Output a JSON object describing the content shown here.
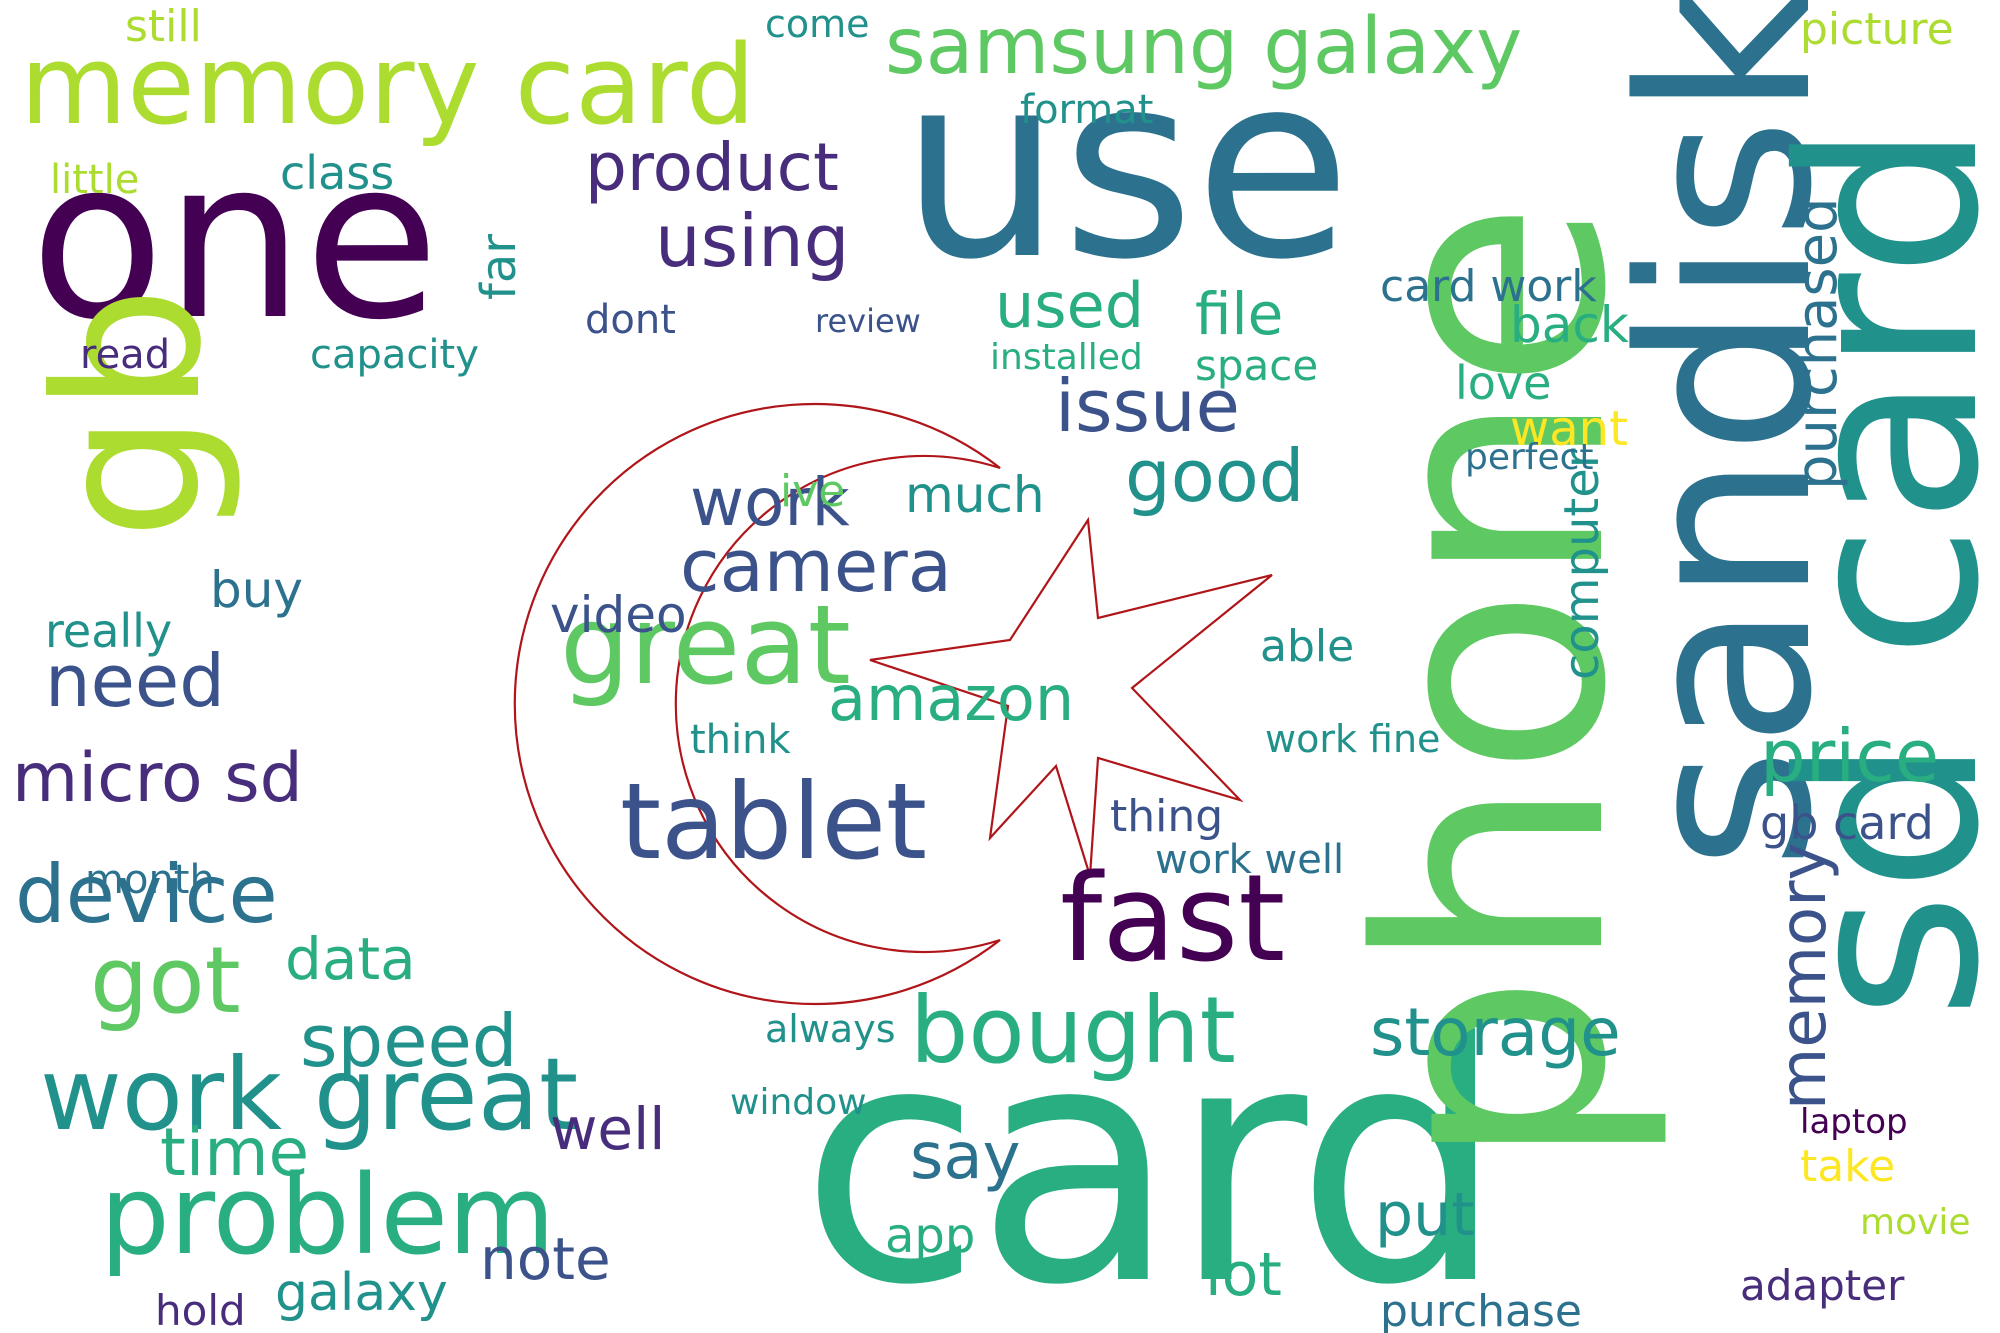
{
  "palette": [
    "#440154",
    "#472d7b",
    "#3b528b",
    "#2c728e",
    "#21918c",
    "#28ae80",
    "#5ec962",
    "#addc30",
    "#fde725"
  ],
  "emblem": {
    "stroke": "#b0151a",
    "description_hidden": ""
  },
  "words": [
    {
      "t": "card",
      "c": 5
    },
    {
      "t": "phone",
      "c": 6
    },
    {
      "t": "sandisk",
      "c": 3
    },
    {
      "t": "sd card",
      "c": 4
    },
    {
      "t": "use",
      "c": 3
    },
    {
      "t": "one",
      "c": 0
    },
    {
      "t": "gb",
      "c": 7
    },
    {
      "t": "memory card",
      "c": 7
    },
    {
      "t": "great",
      "c": 6
    },
    {
      "t": "tablet",
      "c": 2
    },
    {
      "t": "fast",
      "c": 0
    },
    {
      "t": "bought",
      "c": 5
    },
    {
      "t": "problem",
      "c": 5
    },
    {
      "t": "work great",
      "c": 4
    },
    {
      "t": "samsung galaxy",
      "c": 6
    },
    {
      "t": "product",
      "c": 1
    },
    {
      "t": "using",
      "c": 1
    },
    {
      "t": "camera",
      "c": 2
    },
    {
      "t": "work",
      "c": 2
    },
    {
      "t": "video",
      "c": 2
    },
    {
      "t": "amazon",
      "c": 5
    },
    {
      "t": "issue",
      "c": 2
    },
    {
      "t": "good",
      "c": 4
    },
    {
      "t": "device",
      "c": 3
    },
    {
      "t": "micro sd",
      "c": 1
    },
    {
      "t": "need",
      "c": 2
    },
    {
      "t": "got",
      "c": 6
    },
    {
      "t": "speed",
      "c": 4
    },
    {
      "t": "time",
      "c": 5
    },
    {
      "t": "data",
      "c": 5
    },
    {
      "t": "storage",
      "c": 4
    },
    {
      "t": "price",
      "c": 5
    },
    {
      "t": "memory",
      "c": 2
    },
    {
      "t": "purchased",
      "c": 3
    },
    {
      "t": "used",
      "c": 5
    },
    {
      "t": "file",
      "c": 5
    },
    {
      "t": "say",
      "c": 3
    },
    {
      "t": "app",
      "c": 5
    },
    {
      "t": "well",
      "c": 1
    },
    {
      "t": "note",
      "c": 2
    },
    {
      "t": "galaxy",
      "c": 4
    },
    {
      "t": "hold",
      "c": 1
    },
    {
      "t": "window",
      "c": 4
    },
    {
      "t": "put",
      "c": 4
    },
    {
      "t": "lot",
      "c": 5
    },
    {
      "t": "purchase",
      "c": 3
    },
    {
      "t": "computer",
      "c": 4
    },
    {
      "t": "back",
      "c": 5
    },
    {
      "t": "want",
      "c": 8
    },
    {
      "t": "love",
      "c": 5
    },
    {
      "t": "picture",
      "c": 7
    },
    {
      "t": "adapter",
      "c": 1
    },
    {
      "t": "take",
      "c": 8
    },
    {
      "t": "movie",
      "c": 7
    },
    {
      "t": "gb card",
      "c": 2
    },
    {
      "t": "work well",
      "c": 3
    },
    {
      "t": "work fine",
      "c": 4
    },
    {
      "t": "card work",
      "c": 3
    },
    {
      "t": "format",
      "c": 4
    },
    {
      "t": "class",
      "c": 4
    },
    {
      "t": "capacity",
      "c": 4
    },
    {
      "t": "installed",
      "c": 5
    },
    {
      "t": "dont",
      "c": 2
    },
    {
      "t": "review",
      "c": 2
    },
    {
      "t": "still",
      "c": 7
    },
    {
      "t": "little",
      "c": 7
    },
    {
      "t": "come",
      "c": 4
    },
    {
      "t": "far",
      "c": 4
    },
    {
      "t": "ive",
      "c": 6
    },
    {
      "t": "much",
      "c": 4
    },
    {
      "t": "really",
      "c": 4
    },
    {
      "t": "buy",
      "c": 3
    },
    {
      "t": "read",
      "c": 1
    },
    {
      "t": "month",
      "c": 3
    },
    {
      "t": "always",
      "c": 4
    },
    {
      "t": "think",
      "c": 4
    },
    {
      "t": "thing",
      "c": 2
    },
    {
      "t": "space",
      "c": 5
    },
    {
      "t": "perfect",
      "c": 3
    },
    {
      "t": "able",
      "c": 4
    },
    {
      "t": "laptop",
      "c": 0
    },
    {
      "t": "storage",
      "c": 4
    }
  ]
}
